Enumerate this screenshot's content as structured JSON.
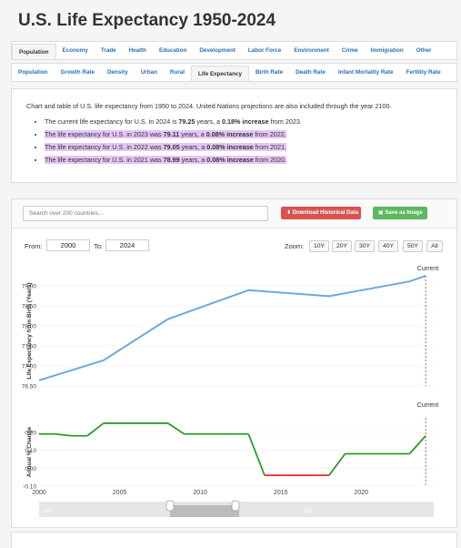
{
  "title": "U.S. Life Expectancy 1950-2024",
  "nav_primary": [
    "Population",
    "Economy",
    "Trade",
    "Health",
    "Education",
    "Development",
    "Labor Force",
    "Environment",
    "Crime",
    "Immigration",
    "Other"
  ],
  "nav_secondary": [
    "Population",
    "Growth Rate",
    "Density",
    "Urban",
    "Rural",
    "Life Expectancy",
    "Birth Rate",
    "Death Rate",
    "Infant Mortality Rate",
    "Fertility Rate"
  ],
  "intro": {
    "summary": "Chart and table of U.S. life expectancy from 1950 to 2024. United Nations projections are also included through the year 2100.",
    "bullets": [
      {
        "pre": "The current life expectancy for U.S. in 2024 is ",
        "value": "79.25",
        "mid": " years, a ",
        "change": "0.18% increase",
        "post": " from 2023."
      },
      {
        "pre": "The life expectancy for U.S. in 2023 was ",
        "value": "79.11",
        "mid": " years, a ",
        "change": "0.08% increase",
        "post": " from 2022."
      },
      {
        "pre": "The life expectancy for U.S. in 2022 was ",
        "value": "79.05",
        "mid": " years, a ",
        "change": "0.08% increase",
        "post": " from 2021."
      },
      {
        "pre": "The life expectancy for U.S. in 2021 was ",
        "value": "78.99",
        "mid": " years, a ",
        "change": "0.08% increase",
        "post": " from 2020."
      }
    ]
  },
  "toolbar": {
    "search_placeholder": "Search over 200 countries...",
    "download_label": "Download Historical Data",
    "save_label": "Save as Image"
  },
  "range": {
    "from_label": "From:",
    "from_value": "2000",
    "to_label": "To:",
    "to_value": "2024"
  },
  "zoom": {
    "label": "Zoom:",
    "options": [
      "10Y",
      "20Y",
      "30Y",
      "40Y",
      "50Y",
      "All"
    ]
  },
  "navigator": {
    "left_label": "1950",
    "right_label": "2000"
  },
  "colors": {
    "line": "#6fa8dc",
    "positive": "#2d9b2d",
    "negative": "#e8262a",
    "current_marker": "#c0392b"
  },
  "chart_data": [
    {
      "type": "line",
      "title": "",
      "ylabel": "Life Expectancy from Birth (Years)",
      "ylim": [
        76.5,
        79.25
      ],
      "yticks": [
        "76.50",
        "77.00",
        "77.50",
        "78.00",
        "78.50",
        "79.00"
      ],
      "annotation": "Current",
      "x": [
        2000,
        2004,
        2008,
        2013,
        2018,
        2023,
        2024
      ],
      "values": [
        76.64,
        77.14,
        78.17,
        78.89,
        78.74,
        79.11,
        79.25
      ]
    },
    {
      "type": "line",
      "title": "",
      "ylabel": "Annual % Change",
      "ylim": [
        -0.1,
        0.28
      ],
      "yticks": [
        "-0.10",
        "0.00",
        "0.10",
        "0.20"
      ],
      "annotation": "Current",
      "xlabels": [
        "2000",
        "2005",
        "2010",
        "2015",
        "2020"
      ],
      "x": [
        2000,
        2001,
        2002,
        2003,
        2004,
        2005,
        2006,
        2007,
        2008,
        2009,
        2010,
        2011,
        2012,
        2013,
        2014,
        2015,
        2016,
        2017,
        2018,
        2019,
        2020,
        2021,
        2022,
        2023,
        2024
      ],
      "values": [
        0.19,
        0.19,
        0.18,
        0.18,
        0.25,
        0.25,
        0.25,
        0.25,
        0.25,
        0.19,
        0.19,
        0.19,
        0.19,
        0.19,
        -0.04,
        -0.04,
        -0.04,
        -0.04,
        -0.04,
        0.08,
        0.08,
        0.08,
        0.08,
        0.08,
        0.18
      ]
    }
  ]
}
